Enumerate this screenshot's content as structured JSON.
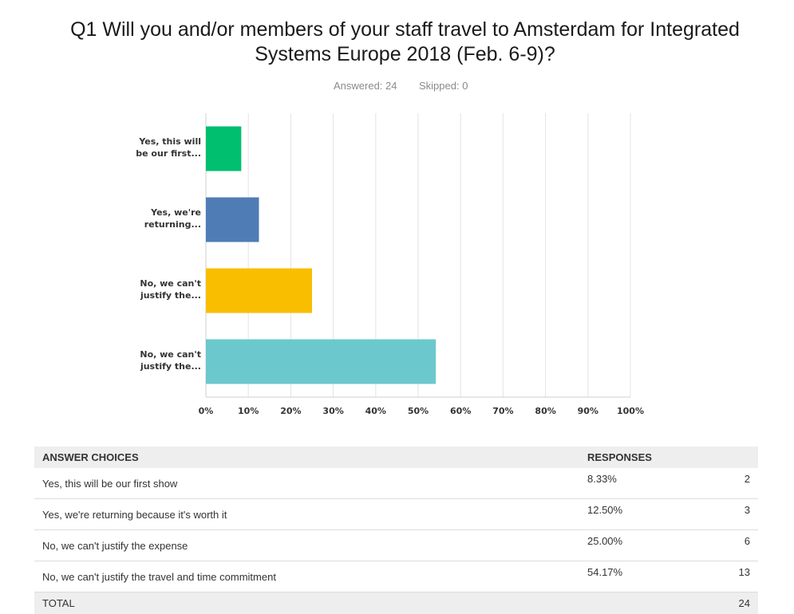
{
  "header": {
    "title": "Q1 Will you and/or members of your staff travel to Amsterdam for Integrated Systems Europe 2018 (Feb. 6-9)?",
    "answered": "Answered: 24",
    "skipped": "Skipped: 0"
  },
  "chart_data": {
    "type": "bar",
    "orientation": "horizontal",
    "categories": [
      [
        "Yes, this will",
        "be our first..."
      ],
      [
        "Yes, we're",
        "returning..."
      ],
      [
        "No, we can't",
        "justify the..."
      ],
      [
        "No, we can't",
        "justify the..."
      ]
    ],
    "values": [
      8.33,
      12.5,
      25.0,
      54.17
    ],
    "colors": [
      "#00bf6f",
      "#507cb6",
      "#f9be00",
      "#6bc8cd"
    ],
    "xlim": [
      0,
      100
    ],
    "ticks": [
      "0%",
      "10%",
      "20%",
      "30%",
      "40%",
      "50%",
      "60%",
      "70%",
      "80%",
      "90%",
      "100%"
    ],
    "grid": true
  },
  "table": {
    "headers": [
      "ANSWER CHOICES",
      "RESPONSES"
    ],
    "rows": [
      {
        "choice": "Yes, this will be our first show",
        "percent": "8.33%",
        "count": "2"
      },
      {
        "choice": "Yes, we're returning because it's worth it",
        "percent": "12.50%",
        "count": "3"
      },
      {
        "choice": "No, we can't justify the expense",
        "percent": "25.00%",
        "count": "6"
      },
      {
        "choice": "No, we can't justify the travel and time commitment",
        "percent": "54.17%",
        "count": "13"
      }
    ],
    "total_label": "TOTAL",
    "total_count": "24"
  }
}
